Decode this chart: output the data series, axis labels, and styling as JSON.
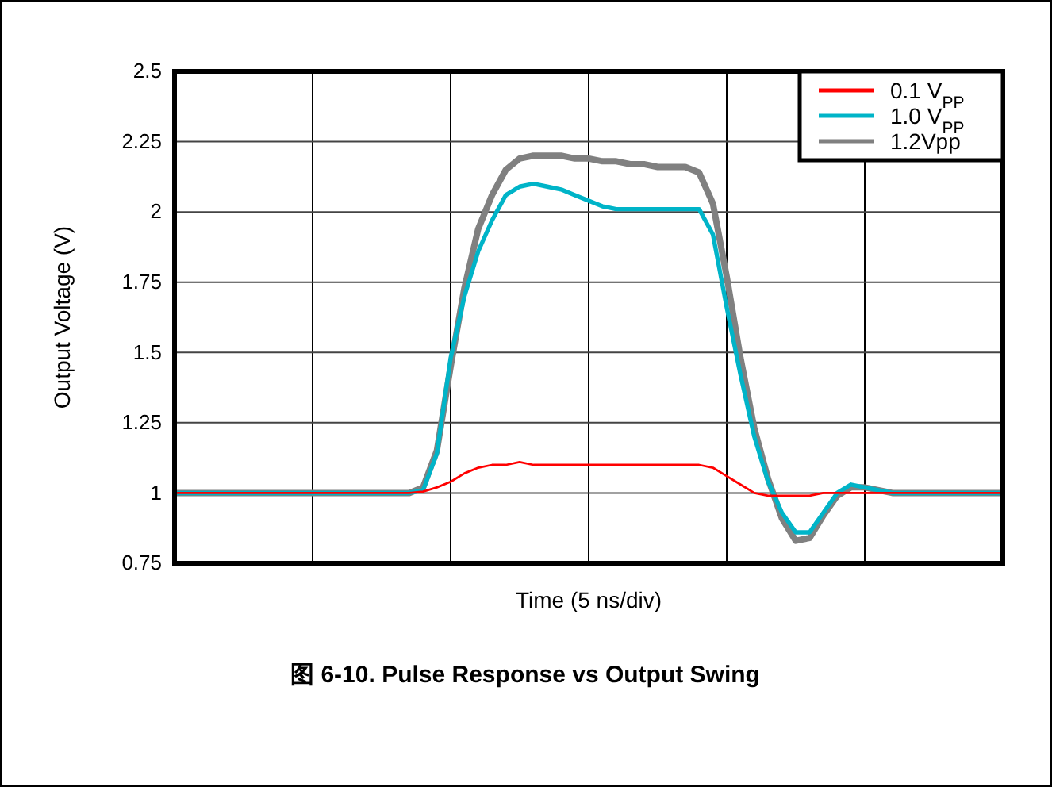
{
  "chart_data": {
    "type": "line",
    "title": "图 6-10. Pulse Response vs Output Swing",
    "xlabel": "Time (5 ns/div)",
    "ylabel": "Output Voltage (V)",
    "categories": [
      null,
      null,
      null,
      null,
      null,
      null,
      null,
      null,
      null,
      null,
      null,
      null,
      null,
      null,
      null,
      null,
      null,
      null,
      null,
      null,
      null,
      null,
      null,
      null,
      null,
      null,
      null,
      null,
      null,
      null,
      null,
      null,
      null,
      null,
      null,
      null,
      null,
      null,
      null,
      null,
      null,
      null,
      null,
      null,
      null,
      null,
      null,
      null,
      null,
      null,
      null,
      null,
      null,
      null,
      null,
      null,
      null,
      null,
      null,
      null,
      null
    ],
    "ylim": [
      0.75,
      2.5
    ],
    "yticks": [
      0.75,
      1,
      1.25,
      1.5,
      1.75,
      2,
      2.25,
      2.5
    ],
    "grid": true,
    "legend": "top right",
    "line_style": "solid",
    "series": [
      {
        "name": "0.1 V$_{PP}$",
        "color": "#ff0000",
        "values": [
          1,
          1,
          1,
          1,
          1,
          1,
          1,
          1,
          1,
          1,
          1,
          1,
          1,
          1,
          1,
          1,
          1,
          1,
          1.005,
          1.02,
          1.04,
          1.07,
          1.09,
          1.1,
          1.1,
          1.11,
          1.1,
          1.1,
          1.1,
          1.1,
          1.1,
          1.1,
          1.1,
          1.1,
          1.1,
          1.1,
          1.1,
          1.1,
          1.1,
          1.09,
          1.06,
          1.03,
          1,
          0.99,
          0.99,
          0.99,
          0.99,
          1,
          1,
          1,
          1,
          1,
          1,
          1,
          1,
          1,
          1,
          1,
          1,
          1,
          1
        ]
      },
      {
        "name": "1.0 V$_{PP}$",
        "color": "#00b4c8",
        "values": [
          1,
          1,
          1,
          1,
          1,
          1,
          1,
          1,
          1,
          1,
          1,
          1,
          1,
          1,
          1,
          1,
          1,
          1,
          1.01,
          1.14,
          1.48,
          1.7,
          1.86,
          1.97,
          2.06,
          2.09,
          2.1,
          2.09,
          2.08,
          2.06,
          2.04,
          2.02,
          2.01,
          2.01,
          2.01,
          2.01,
          2.01,
          2.01,
          2.01,
          1.92,
          1.66,
          1.42,
          1.2,
          1.04,
          0.93,
          0.86,
          0.86,
          0.93,
          1,
          1.03,
          1.02,
          1.01,
          1,
          1,
          1,
          1,
          1,
          1,
          1,
          1,
          1
        ]
      },
      {
        "name": "1.2Vpp",
        "color": "#808080",
        "values": [
          1,
          1,
          1,
          1,
          1,
          1,
          1,
          1,
          1,
          1,
          1,
          1,
          1,
          1,
          1,
          1,
          1,
          1,
          1.02,
          1.15,
          1.45,
          1.73,
          1.94,
          2.06,
          2.15,
          2.19,
          2.2,
          2.2,
          2.2,
          2.19,
          2.19,
          2.18,
          2.18,
          2.17,
          2.17,
          2.16,
          2.16,
          2.16,
          2.14,
          2.03,
          1.77,
          1.48,
          1.23,
          1.05,
          0.91,
          0.83,
          0.84,
          0.92,
          0.99,
          1.02,
          1.02,
          1.01,
          1,
          1,
          1,
          1,
          1,
          1,
          1,
          1,
          1
        ]
      }
    ]
  }
}
